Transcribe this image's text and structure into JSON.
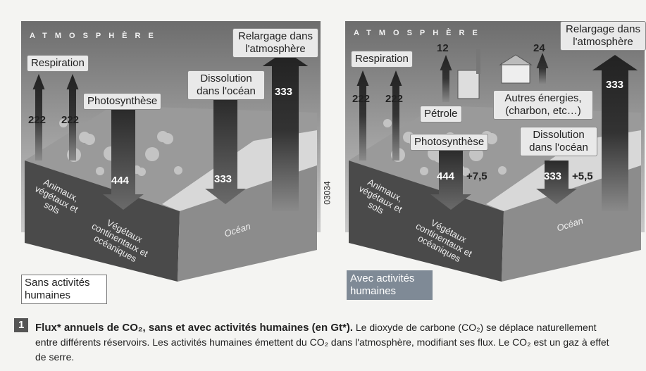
{
  "figure_number": "1",
  "caption": {
    "title": "Flux* annuels de CO₂, sans et avec activités humaines (en Gt*).",
    "text": "Le dioxyde de carbone (CO₂) se déplace naturellement entre différents réservoirs. Les activités humaines émettent du CO₂ dans l'atmosphère, modifiant ses flux. Le CO₂ est un gaz à effet de serre."
  },
  "code": "03034",
  "panels": [
    {
      "atmosphere": "ATMOSPHÈRE",
      "respiration": "Respiration",
      "photosynthese": "Photosynthèse",
      "dissolution": "Dissolution dans l'océan",
      "relargage": "Relargage dans l'atmosphère",
      "animaux": "Animaux, végétaux et sols",
      "vegetaux": "Végétaux continentaux et océaniques",
      "ocean": "Océan",
      "scenario": "Sans activités humaines",
      "flux": {
        "respiration_1": 222,
        "respiration_2": 222,
        "photosynthese": 444,
        "dissolution": 333,
        "relargage": 333
      }
    },
    {
      "atmosphere": "ATMOSPHÈRE",
      "respiration": "Respiration",
      "photosynthese": "Photosynthèse",
      "dissolution": "Dissolution dans l'océan",
      "relargage": "Relargage dans l'atmosphère",
      "petrole": "Pétrole",
      "autres": "Autres énergies, (charbon, etc…)",
      "animaux": "Animaux, végétaux et sols",
      "vegetaux": "Végétaux continentaux et océaniques",
      "ocean": "Océan",
      "scenario": "Avec activités humaines",
      "flux": {
        "respiration_1": 222,
        "respiration_2": 222,
        "petrole": 12,
        "autres": 24,
        "photosynthese": 444,
        "photosynthese_extra": "+7,5",
        "dissolution": 333,
        "dissolution_extra": "+5,5",
        "relargage": 333
      }
    }
  ]
}
